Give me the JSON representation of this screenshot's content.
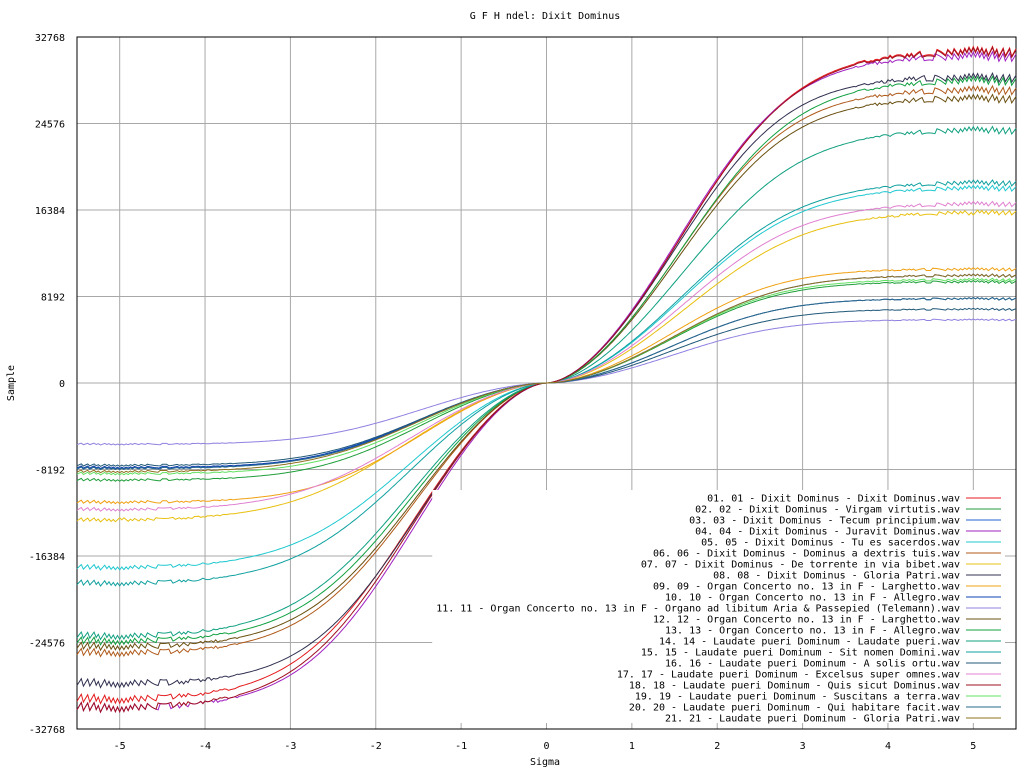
{
  "chart_data": {
    "type": "line",
    "title": "G F H ndel: Dixit Dominus",
    "xlabel": "Sigma",
    "ylabel": "Sample",
    "xlim": [
      -5.5,
      5.5
    ],
    "ylim": [
      -32768,
      32768
    ],
    "x_ticks": [
      -5,
      -4,
      -3,
      -2,
      -1,
      0,
      1,
      2,
      3,
      4,
      5
    ],
    "y_ticks": [
      -32768,
      -24576,
      -16384,
      -8192,
      0,
      8192,
      16384,
      24576,
      32768
    ],
    "grid": true,
    "legend_position": "bottom-right",
    "series": [
      {
        "name": "01. 01 - Dixit Dominus - Dixit Dominus.wav",
        "color": "#e41a1c",
        "max": 31500,
        "min": -30000,
        "k": 2.45
      },
      {
        "name": "02. 02 - Dixit Dominus - Virgam virtutis.wav",
        "color": "#1f9e3a",
        "max": 9600,
        "min": -9200,
        "k": 2.3
      },
      {
        "name": "03. 03 - Dixit Dominus - Tecum principium.wav",
        "color": "#2060d0",
        "max": 10200,
        "min": -8100,
        "k": 2.35
      },
      {
        "name": "04. 04 - Dixit Dominus - Juravit Dominus.wav",
        "color": "#a020c0",
        "max": 31000,
        "min": -30800,
        "k": 2.4
      },
      {
        "name": "05. 05 - Dixit Dominus - Tu es sacerdos.wav",
        "color": "#20c8d0",
        "max": 18500,
        "min": -17500,
        "k": 2.5
      },
      {
        "name": "06. 06 - Dixit Dominus - Dominus a dextris tuis.wav",
        "color": "#b05a1a",
        "max": 27800,
        "min": -25600,
        "k": 2.4
      },
      {
        "name": "07. 07 - Dixit Dominus - De torrente in via bibet.wav",
        "color": "#e8c010",
        "max": 16200,
        "min": -13000,
        "k": 2.55
      },
      {
        "name": "08. 08 - Dixit Dominus - Gloria Patri.wav",
        "color": "#303050",
        "max": 29000,
        "min": -28500,
        "k": 2.35
      },
      {
        "name": "09. 09 - Organ Concerto no. 13 in F - Larghetto.wav",
        "color": "#f0a010",
        "max": 10800,
        "min": -11300,
        "k": 2.3
      },
      {
        "name": "10. 10 - Organ Concerto no. 13 in F - Allegro.wav",
        "color": "#1040b0",
        "max": 8000,
        "min": -8000,
        "k": 2.3
      },
      {
        "name": "11. 11 - Organ Concerto no. 13 in F - Organo ad  libitum Aria & Passepied (Telemann).wav",
        "color": "#9080e0",
        "max": 6000,
        "min": -5800,
        "k": 2.3
      },
      {
        "name": "12. 12 - Organ Concerto no. 13 in F - Larghetto.wav",
        "color": "#6a5010",
        "max": 27000,
        "min": -25000,
        "k": 2.4
      },
      {
        "name": "13. 13 - Organ Concerto no. 13 in F - Allegro.wav",
        "color": "#10a040",
        "max": 28700,
        "min": -24500,
        "k": 2.45
      },
      {
        "name": "14. 14 - Laudate pueri Dominum - Laudate pueri.wav",
        "color": "#10a080",
        "max": 24000,
        "min": -24000,
        "k": 2.5
      },
      {
        "name": "15. 15 - Laudate pueri Dominum - Sit nomen Domini.wav",
        "color": "#10a0a0",
        "max": 19000,
        "min": -19000,
        "k": 2.5
      },
      {
        "name": "16. 16 - Laudate pueri Dominum - A solis ortu.wav",
        "color": "#205878",
        "max": 7000,
        "min": -7800,
        "k": 2.3
      },
      {
        "name": "17. 17 - Laudate pueri Dominum - Excelsus super omnes.wav",
        "color": "#e080d0",
        "max": 17000,
        "min": -12000,
        "k": 2.5
      },
      {
        "name": "18. 18 - Laudate pueri Dominum - Quis sicut Dominus.wav",
        "color": "#a01020",
        "max": 31400,
        "min": -30800,
        "k": 2.45
      },
      {
        "name": "19. 19 - Laudate pueri Dominum - Suscitans a terra.wav",
        "color": "#60e060",
        "max": 9800,
        "min": -8600,
        "k": 2.3
      },
      {
        "name": "20. 20 - Laudate pueri Dominum - Qui habitare facit.wav",
        "color": "#2a6a8a",
        "max": 8000,
        "min": -8100,
        "k": 2.3
      },
      {
        "name": "21. 21 - Laudate pueri Dominum - Gloria Patri.wav",
        "color": "#907020",
        "max": 10200,
        "min": -8400,
        "k": 2.35
      }
    ]
  }
}
